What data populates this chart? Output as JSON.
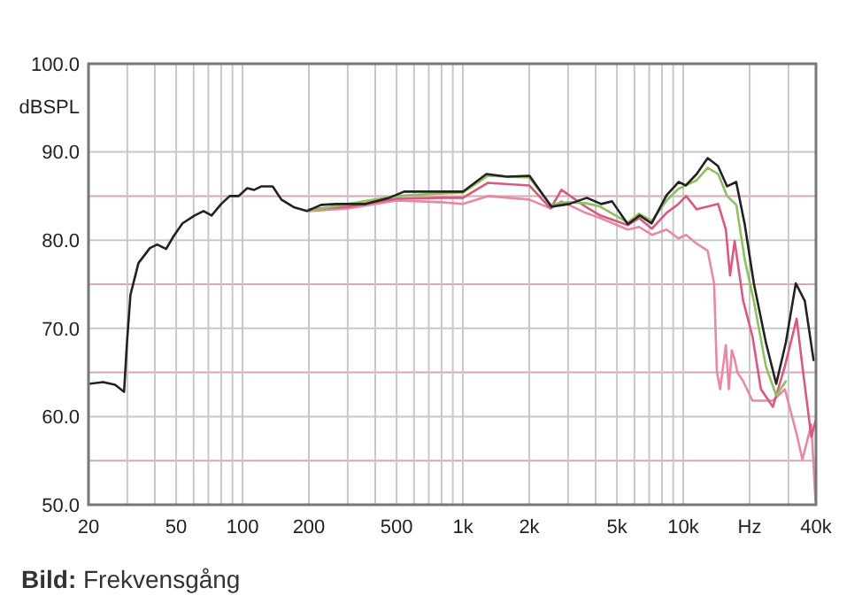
{
  "chart_data": {
    "type": "line",
    "ylabel": "dBSPL",
    "annotations": [
      "Bild: Frekvensgång"
    ],
    "log": "x",
    "grid": true,
    "line_style": "solid",
    "xlim": [
      20,
      40000
    ],
    "ylim": [
      50,
      100
    ],
    "xticks": [
      20,
      {
        "value": 30,
        "label": null
      },
      {
        "value": 40,
        "label": null
      },
      50,
      {
        "value": 60,
        "label": null
      },
      {
        "value": 70,
        "label": null
      },
      {
        "value": 80,
        "label": null
      },
      {
        "value": 90,
        "label": null
      },
      100,
      200,
      {
        "value": 300,
        "label": null
      },
      {
        "value": 400,
        "label": null
      },
      500,
      {
        "value": 600,
        "label": null
      },
      {
        "value": 700,
        "label": null
      },
      {
        "value": 800,
        "label": null
      },
      {
        "value": 900,
        "label": null
      },
      {
        "value": 1000,
        "label": "1k"
      },
      {
        "value": 2000,
        "label": "2k"
      },
      {
        "value": 3000,
        "label": null
      },
      {
        "value": 4000,
        "label": null
      },
      {
        "value": 5000,
        "label": "5k"
      },
      {
        "value": 6000,
        "label": null
      },
      {
        "value": 7000,
        "label": null
      },
      {
        "value": 8000,
        "label": null
      },
      {
        "value": 9000,
        "label": null
      },
      {
        "value": 10000,
        "label": "10k"
      },
      {
        "value": 20000,
        "label": "Hz"
      },
      {
        "value": 30000,
        "label": null
      },
      {
        "value": 40000,
        "label": "40k"
      }
    ],
    "yticks": [
      {
        "value": 50,
        "label": "50.0"
      },
      {
        "value": 55,
        "label": null
      },
      {
        "value": 60,
        "label": "60.0"
      },
      {
        "value": 65,
        "label": null
      },
      {
        "value": 70,
        "label": "70.0"
      },
      {
        "value": 75,
        "label": null
      },
      {
        "value": 80,
        "label": "80.0"
      },
      {
        "value": 85,
        "label": null
      },
      {
        "value": 90,
        "label": "90.0"
      },
      {
        "value": 100,
        "label": "100.0"
      }
    ],
    "series": [
      {
        "color": "#e68aa4",
        "x": [
          200,
          300,
          500,
          800,
          1000,
          1300,
          2000,
          2500,
          2800,
          3600,
          4200,
          5600,
          6300,
          7200,
          8400,
          9500,
          10300,
          11500,
          12900,
          13800,
          14200,
          14700,
          15600,
          16100,
          16600,
          17100,
          17600,
          18700,
          20600,
          22500,
          25500,
          28900,
          32700,
          34700,
          38100,
          39800
        ],
        "values": [
          83.3,
          83.6,
          84.5,
          84.3,
          84.1,
          85.0,
          84.6,
          83.6,
          84.4,
          83.1,
          82.5,
          81.2,
          81.5,
          80.6,
          81.2,
          80.2,
          80.6,
          79.6,
          78.8,
          75.1,
          65.1,
          63.1,
          68.1,
          63.1,
          67.5,
          66.5,
          65.0,
          64.0,
          61.8,
          61.8,
          61.8,
          63.1,
          58.0,
          55.1,
          59.1,
          50.4
        ]
      },
      {
        "color": "#d95a7e",
        "x": [
          200,
          300,
          500,
          800,
          1000,
          1300,
          2000,
          2500,
          2800,
          3600,
          4200,
          5600,
          6300,
          7200,
          8400,
          9500,
          10300,
          11500,
          12900,
          14400,
          15600,
          16300,
          17100,
          18700,
          20600,
          22500,
          25500,
          28900,
          32700,
          34700,
          38100,
          39800
        ],
        "values": [
          83.5,
          83.8,
          84.7,
          84.8,
          84.8,
          86.5,
          86.2,
          83.6,
          85.7,
          83.8,
          82.8,
          81.7,
          82.5,
          81.3,
          83.1,
          84.1,
          85.0,
          83.5,
          83.8,
          84.1,
          81.2,
          76.0,
          79.9,
          73.1,
          69.1,
          63.1,
          61.1,
          65.7,
          71.1,
          65.7,
          57.7,
          59.5
        ]
      },
      {
        "color": "#8cc060",
        "x": [
          200,
          300,
          500,
          800,
          1000,
          1300,
          2000,
          2500,
          3000,
          3600,
          4200,
          5600,
          6300,
          7200,
          8400,
          9500,
          11500,
          12900,
          14400,
          15800,
          17400,
          19000,
          20900,
          23700,
          26400,
          29200
        ],
        "values": [
          83.3,
          84.1,
          85.0,
          85.3,
          85.4,
          87.3,
          87.1,
          84.0,
          84.3,
          84.2,
          83.8,
          82.0,
          83.0,
          82.2,
          84.5,
          85.8,
          86.8,
          88.2,
          87.5,
          85.0,
          84.0,
          77.8,
          73.1,
          65.7,
          62.4,
          64.0
        ]
      },
      {
        "color": "#222222",
        "x": [
          20,
          23.3,
          26.4,
          29,
          29.9,
          31,
          33.7,
          38,
          41,
          45,
          48.8,
          53.4,
          60.6,
          66.5,
          72.4,
          80,
          87.5,
          96,
          105,
          113,
          122,
          137,
          150,
          172,
          196,
          227,
          265,
          362,
          462,
          541,
          805,
          1000,
          1278,
          1584,
          2005,
          2520,
          3035,
          3650,
          4240,
          4750,
          5605,
          6340,
          7180,
          8400,
          9530,
          10265,
          11500,
          12900,
          14370,
          15800,
          17380,
          19000,
          20900,
          23700,
          26400,
          29200,
          32400,
          35600,
          39000
        ],
        "values": [
          63.7,
          63.9,
          63.6,
          62.8,
          68.4,
          73.8,
          77.4,
          79.1,
          79.5,
          79.0,
          80.5,
          81.9,
          82.8,
          83.3,
          82.8,
          84.1,
          85.0,
          85.0,
          85.9,
          85.7,
          86.1,
          86.1,
          84.6,
          83.7,
          83.3,
          84.0,
          84.1,
          84.1,
          84.8,
          85.5,
          85.5,
          85.5,
          87.5,
          87.2,
          87.3,
          83.8,
          84.1,
          84.8,
          84.1,
          84.4,
          81.8,
          82.8,
          81.9,
          85.1,
          86.6,
          86.2,
          87.5,
          89.3,
          88.4,
          86.1,
          86.6,
          81.8,
          75.1,
          68.4,
          63.7,
          68.4,
          75.1,
          73.1,
          66.4
        ]
      }
    ]
  }
}
